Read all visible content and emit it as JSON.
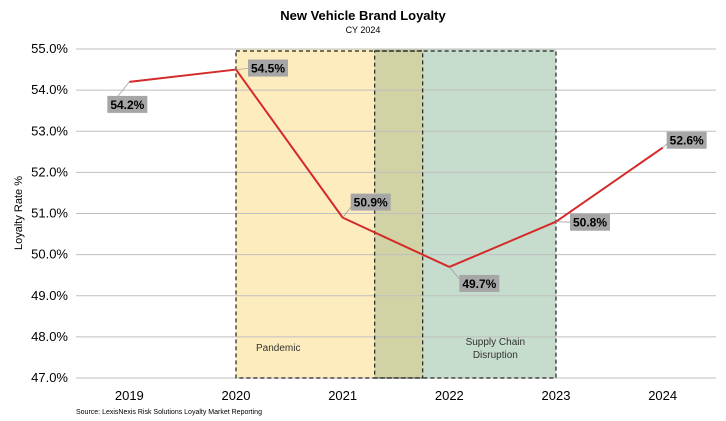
{
  "chart_data": {
    "type": "line",
    "title": "New Vehicle Brand Loyalty",
    "subtitle": "CY 2024",
    "ylabel": "Loyalty Rate %",
    "xlabel": "",
    "source": "Source: LexisNexis Risk Solutions Loyalty Market Reporting",
    "ylim": [
      47.0,
      55.0
    ],
    "yticks": [
      "47.0%",
      "48.0%",
      "49.0%",
      "50.0%",
      "51.0%",
      "52.0%",
      "53.0%",
      "54.0%",
      "55.0%"
    ],
    "ytick_values": [
      47,
      48,
      49,
      50,
      51,
      52,
      53,
      54,
      55
    ],
    "xticks": [
      "2019",
      "2020",
      "2021",
      "2022",
      "2023",
      "2024"
    ],
    "grid": "horizontal",
    "series": [
      {
        "color": "#d42a2a",
        "points": [
          {
            "x": 2019.0,
            "y": 54.2,
            "label": "54.2%"
          },
          {
            "x": 2020.0,
            "y": 54.5,
            "label": "54.5%"
          },
          {
            "x": 2021.0,
            "y": 50.9,
            "label": "50.9%"
          },
          {
            "x": 2022.0,
            "y": 49.7,
            "label": "49.7%"
          },
          {
            "x": 2023.0,
            "y": 50.8,
            "label": "50.8%"
          },
          {
            "x": 2024.0,
            "y": 52.6,
            "label": "52.6%"
          }
        ]
      }
    ],
    "regions": [
      {
        "name": "Pandemic",
        "x_start": 2020.0,
        "x_end": 2021.75,
        "color": "#fdecbd"
      },
      {
        "name": "Supply Chain Disruption",
        "x_start": 2021.3,
        "x_end": 2023.0,
        "color": "#c6dccd"
      }
    ],
    "overlap_color": "#d2d3a4",
    "data_label_bg": "#a6a6a6"
  }
}
